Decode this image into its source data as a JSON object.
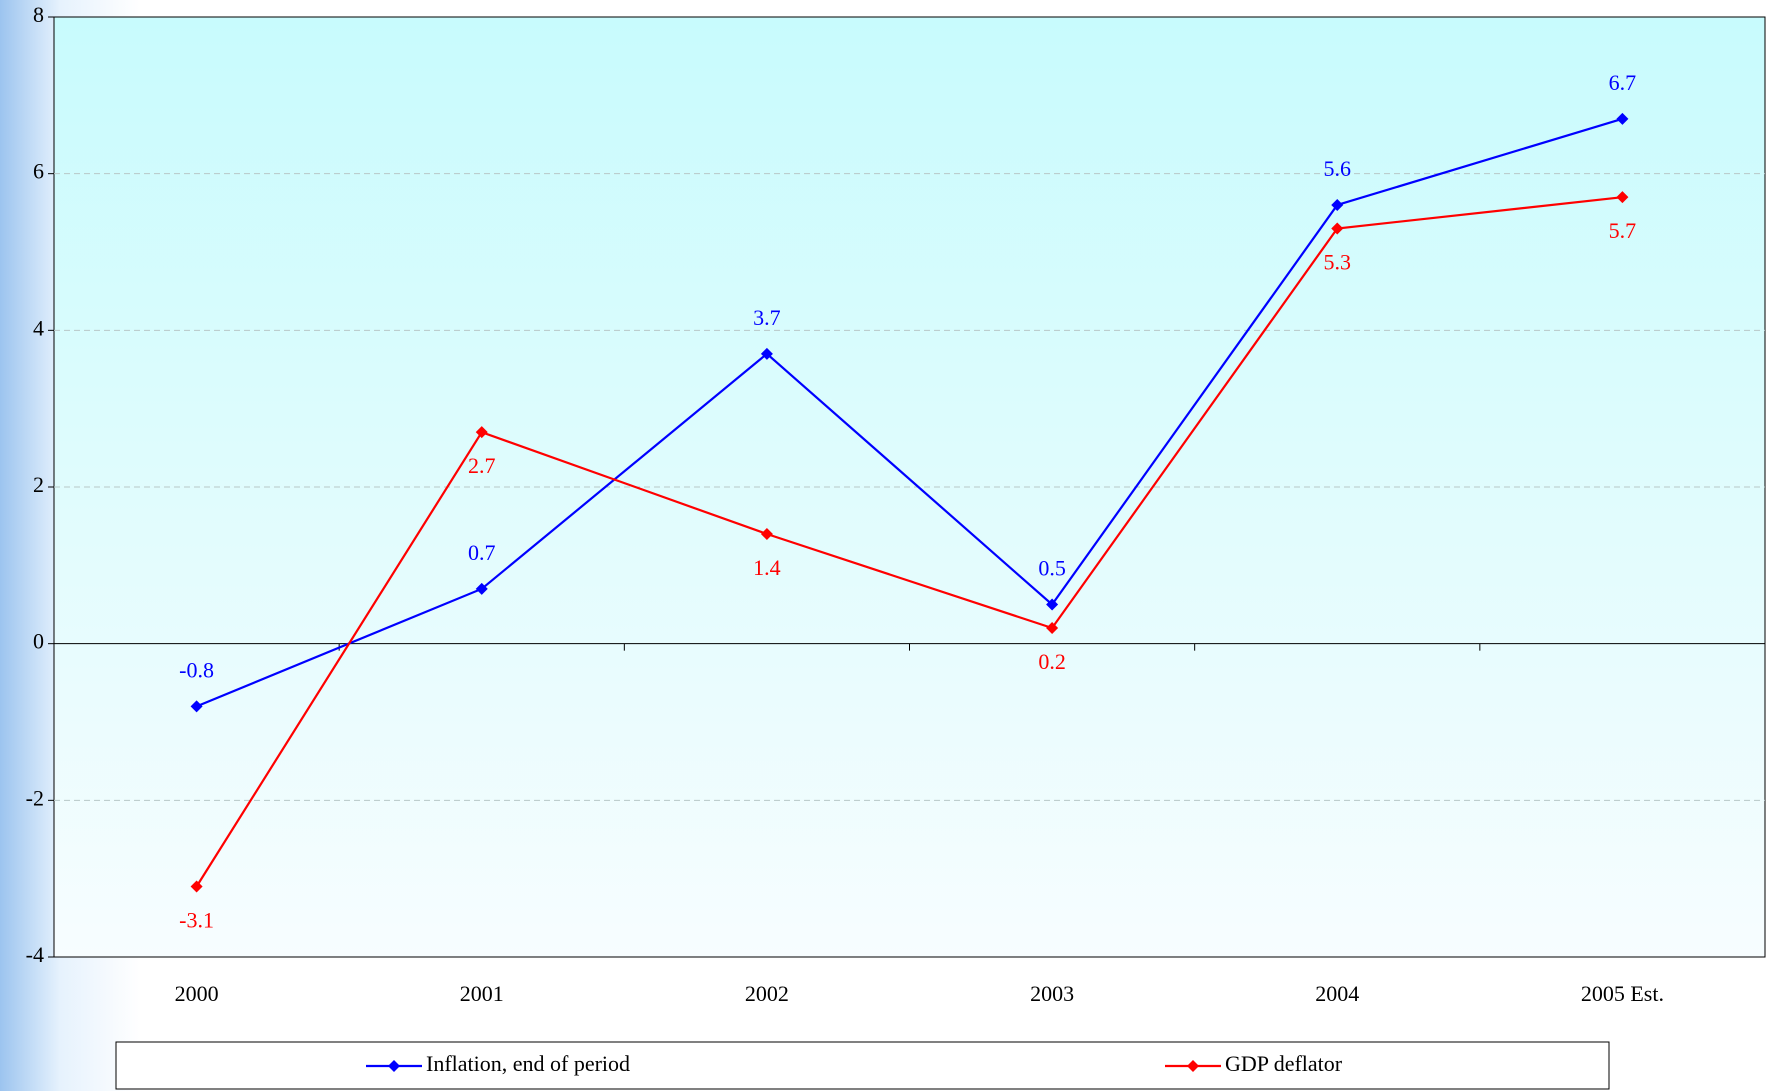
{
  "chart_data": {
    "type": "line",
    "categories": [
      "2000",
      "2001",
      "2002",
      "2003",
      "2004",
      "2005 Est."
    ],
    "series": [
      {
        "name": "Inflation, end of period",
        "color": "#0000ff",
        "values": [
          -0.8,
          0.7,
          3.7,
          0.5,
          5.6,
          6.7
        ]
      },
      {
        "name": "GDP deflator",
        "color": "#ff0000",
        "values": [
          -3.1,
          2.7,
          1.4,
          0.2,
          5.3,
          5.7
        ]
      }
    ],
    "ylim": [
      -4,
      8
    ],
    "yticks": [
      -4,
      -2,
      0,
      2,
      4,
      6,
      8
    ],
    "grid": true,
    "legend": "bottom"
  }
}
